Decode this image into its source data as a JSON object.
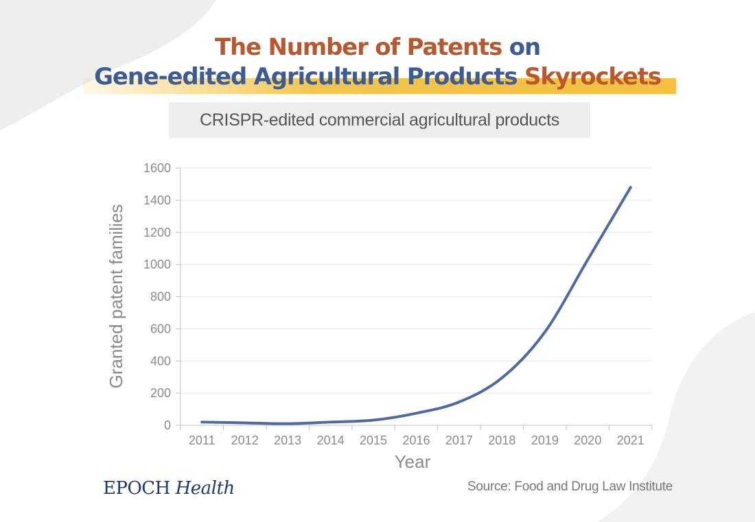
{
  "title": {
    "line1": {
      "part1": "The Number of Patents",
      "part2": "on"
    },
    "line2": {
      "part1": "Gene-edited Agricultural Products",
      "part2": "Skyrockets"
    }
  },
  "subtitle": "CRISPR-edited commercial agricultural products",
  "brand": {
    "name": "EPOCH",
    "sub": "Health"
  },
  "source": "Source: Food and Drug Law Institute",
  "colors": {
    "title_orange": "#b8582e",
    "title_blue": "#3d5c93",
    "highlight": "#f3c040",
    "line": "#4f6a9c",
    "brand": "#1e3a66"
  },
  "chart_data": {
    "type": "line",
    "xlabel": "Year",
    "ylabel": "Granted patent families",
    "ylim": [
      0,
      1600
    ],
    "yticks": [
      0,
      200,
      400,
      600,
      800,
      1000,
      1200,
      1400,
      1600
    ],
    "grid": true,
    "x": [
      "2011",
      "2012",
      "2013",
      "2014",
      "2015",
      "2016",
      "2017",
      "2018",
      "2019",
      "2020",
      "2021"
    ],
    "series": [
      {
        "values": [
          20,
          15,
          10,
          20,
          32,
          75,
          145,
          295,
          580,
          1030,
          1480
        ]
      }
    ]
  }
}
